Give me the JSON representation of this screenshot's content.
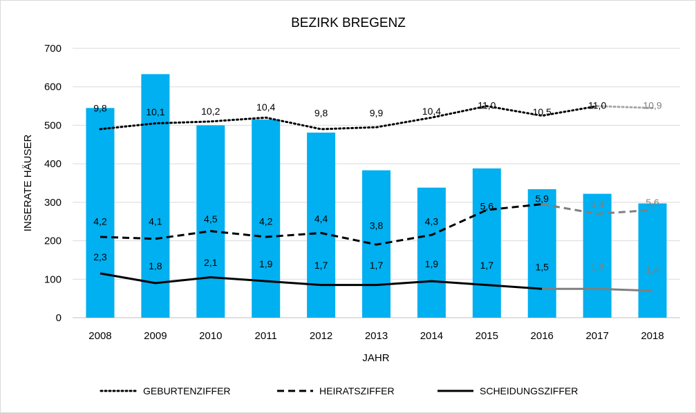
{
  "chart_data": {
    "type": "bar",
    "title": "BEZIRK BREGENZ",
    "xlabel": "JAHR",
    "ylabel": "INSERATE HÄUSER",
    "ylim": [
      0,
      700
    ],
    "yticks": [
      0,
      100,
      200,
      300,
      400,
      500,
      600,
      700
    ],
    "grid": true,
    "legend_position": "bottom",
    "categories": [
      "2008",
      "2009",
      "2010",
      "2011",
      "2012",
      "2013",
      "2014",
      "2015",
      "2016",
      "2017",
      "2018"
    ],
    "bar_values": [
      545,
      633,
      500,
      515,
      481,
      383,
      338,
      388,
      334,
      322,
      297
    ],
    "bar_color": "#00b0f0",
    "lines": [
      {
        "name": "GEBURTENZIFFER",
        "style": "dotted",
        "color": "#000000",
        "projection_color": "#a6a6a6",
        "plot_values": [
          490,
          505,
          510,
          520,
          490,
          495,
          520,
          550,
          525,
          550,
          545
        ],
        "labels": [
          "9,8",
          "10,1",
          "10,2",
          "10,4",
          "9,8",
          "9,9",
          "10,4",
          "11,0",
          "10,5",
          "11,0",
          "10,9"
        ],
        "label_y": [
          545,
          535,
          537,
          547,
          532,
          532,
          537,
          552,
          535,
          552,
          552
        ],
        "projection_from": 9
      },
      {
        "name": "HEIRATSZIFFER",
        "style": "dashed",
        "color": "#000000",
        "projection_color": "#7f7f7f",
        "plot_values": [
          210,
          205,
          225,
          210,
          220,
          190,
          215,
          280,
          295,
          270,
          280
        ],
        "labels": [
          "4,2",
          "4,1",
          "4,5",
          "4,2",
          "4,4",
          "3,8",
          "4,3",
          "5,6",
          "5,9",
          "5,4",
          "5,6"
        ],
        "label_y": [
          250,
          250,
          257,
          250,
          258,
          240,
          250,
          290,
          310,
          295,
          300
        ],
        "projection_from": 8
      },
      {
        "name": "SCHEIDUNGSZIFFER",
        "style": "solid",
        "color": "#000000",
        "projection_color": "#7f7f7f",
        "plot_values": [
          115,
          90,
          105,
          95,
          85,
          85,
          95,
          85,
          75,
          75,
          70
        ],
        "labels": [
          "2,3",
          "1,8",
          "2,1",
          "1,9",
          "1,7",
          "1,7",
          "1,9",
          "1,7",
          "1,5",
          "1,5",
          "1,4"
        ],
        "label_y": [
          158,
          135,
          144,
          140,
          136,
          136,
          140,
          136,
          132,
          132,
          125
        ],
        "projection_from": 8
      }
    ]
  }
}
